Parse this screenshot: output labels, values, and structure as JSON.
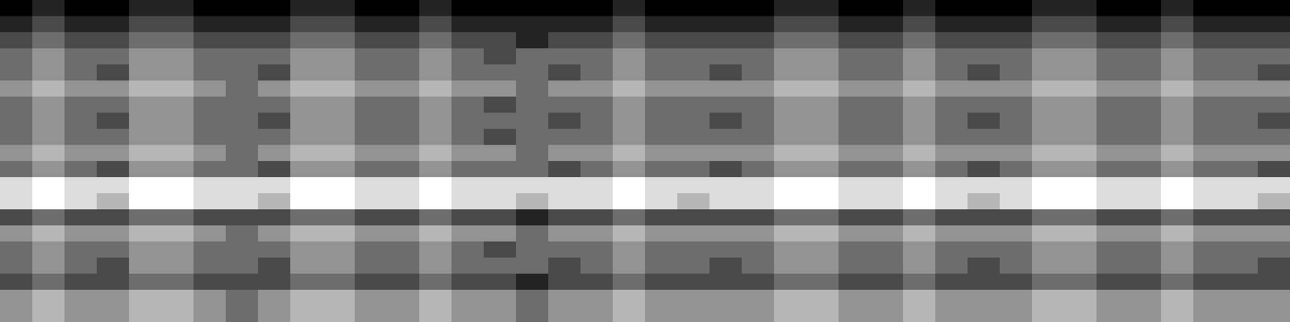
{
  "chart_data": {
    "type": "heatmap",
    "color": "gray",
    "tick_labels": false,
    "cells": [
      [
        0,
        1,
        0,
        0,
        1,
        1,
        0,
        0,
        0,
        1,
        1,
        0,
        0,
        1,
        0,
        0,
        0,
        0,
        0,
        1,
        0,
        0,
        0,
        0,
        1,
        1,
        0,
        0,
        1,
        0,
        0,
        0,
        1,
        1,
        0,
        0,
        1,
        0,
        0,
        0
      ],
      [
        1,
        2,
        1,
        1,
        2,
        2,
        1,
        1,
        1,
        2,
        2,
        1,
        1,
        2,
        1,
        1,
        1,
        1,
        1,
        2,
        1,
        1,
        1,
        1,
        2,
        2,
        1,
        1,
        2,
        1,
        1,
        1,
        2,
        2,
        1,
        1,
        2,
        1,
        1,
        1
      ],
      [
        2,
        3,
        2,
        2,
        3,
        3,
        2,
        2,
        2,
        3,
        3,
        2,
        2,
        3,
        2,
        2,
        1,
        2,
        2,
        3,
        2,
        2,
        2,
        2,
        3,
        3,
        2,
        2,
        3,
        2,
        2,
        2,
        3,
        3,
        2,
        2,
        3,
        2,
        2,
        2
      ],
      [
        3,
        4,
        3,
        3,
        4,
        4,
        3,
        3,
        3,
        4,
        4,
        3,
        3,
        4,
        3,
        2,
        3,
        3,
        3,
        4,
        3,
        3,
        3,
        3,
        4,
        4,
        3,
        3,
        4,
        3,
        3,
        3,
        4,
        4,
        3,
        3,
        4,
        3,
        3,
        3
      ],
      [
        3,
        4,
        3,
        2,
        4,
        4,
        3,
        3,
        2,
        4,
        4,
        3,
        3,
        4,
        3,
        3,
        3,
        2,
        3,
        4,
        3,
        3,
        2,
        3,
        4,
        4,
        3,
        3,
        4,
        3,
        2,
        3,
        4,
        4,
        3,
        3,
        4,
        3,
        3,
        2
      ],
      [
        4,
        5,
        4,
        4,
        5,
        5,
        4,
        3,
        4,
        5,
        5,
        4,
        4,
        5,
        4,
        4,
        3,
        4,
        4,
        5,
        4,
        4,
        4,
        4,
        5,
        5,
        4,
        4,
        5,
        4,
        4,
        4,
        5,
        5,
        4,
        4,
        5,
        4,
        4,
        4
      ],
      [
        3,
        4,
        3,
        3,
        4,
        4,
        3,
        3,
        3,
        4,
        4,
        3,
        3,
        4,
        3,
        2,
        3,
        3,
        3,
        4,
        3,
        3,
        3,
        3,
        4,
        4,
        3,
        3,
        4,
        3,
        3,
        3,
        4,
        4,
        3,
        3,
        4,
        3,
        3,
        3
      ],
      [
        3,
        4,
        3,
        2,
        4,
        4,
        3,
        3,
        2,
        4,
        4,
        3,
        3,
        4,
        3,
        3,
        3,
        2,
        3,
        4,
        3,
        3,
        2,
        3,
        4,
        4,
        3,
        3,
        4,
        3,
        2,
        3,
        4,
        4,
        3,
        3,
        4,
        3,
        3,
        2
      ],
      [
        3,
        4,
        3,
        3,
        4,
        4,
        3,
        3,
        3,
        4,
        4,
        3,
        3,
        4,
        3,
        2,
        3,
        3,
        3,
        4,
        3,
        3,
        3,
        3,
        4,
        4,
        3,
        3,
        4,
        3,
        3,
        3,
        4,
        4,
        3,
        3,
        4,
        3,
        3,
        3
      ],
      [
        4,
        5,
        4,
        4,
        5,
        5,
        4,
        3,
        4,
        5,
        5,
        4,
        4,
        5,
        4,
        4,
        3,
        4,
        4,
        5,
        4,
        4,
        4,
        4,
        5,
        5,
        4,
        4,
        5,
        4,
        4,
        4,
        5,
        5,
        4,
        4,
        5,
        4,
        4,
        4
      ],
      [
        3,
        4,
        3,
        2,
        4,
        4,
        3,
        3,
        2,
        4,
        4,
        3,
        3,
        4,
        3,
        3,
        3,
        2,
        3,
        4,
        3,
        3,
        2,
        3,
        4,
        4,
        3,
        3,
        4,
        3,
        2,
        3,
        4,
        4,
        3,
        3,
        4,
        3,
        3,
        2
      ],
      [
        6,
        7,
        6,
        6,
        7,
        7,
        6,
        6,
        6,
        7,
        7,
        6,
        6,
        7,
        6,
        6,
        6,
        6,
        6,
        7,
        6,
        6,
        6,
        6,
        7,
        7,
        6,
        6,
        7,
        6,
        6,
        6,
        7,
        7,
        6,
        6,
        7,
        6,
        6,
        6
      ],
      [
        6,
        7,
        6,
        5,
        7,
        7,
        6,
        6,
        5,
        7,
        7,
        6,
        6,
        7,
        6,
        6,
        5,
        6,
        6,
        7,
        6,
        5,
        6,
        6,
        7,
        7,
        6,
        6,
        7,
        6,
        5,
        6,
        7,
        7,
        6,
        6,
        7,
        6,
        6,
        5
      ],
      [
        2,
        3,
        2,
        2,
        3,
        3,
        2,
        2,
        2,
        3,
        3,
        2,
        2,
        3,
        2,
        2,
        1,
        2,
        2,
        3,
        2,
        2,
        2,
        2,
        3,
        3,
        2,
        2,
        3,
        2,
        2,
        2,
        3,
        3,
        2,
        2,
        3,
        2,
        2,
        2
      ],
      [
        4,
        5,
        4,
        4,
        5,
        5,
        4,
        3,
        4,
        5,
        5,
        4,
        4,
        5,
        4,
        4,
        3,
        4,
        4,
        5,
        4,
        4,
        4,
        4,
        5,
        5,
        4,
        4,
        5,
        4,
        4,
        4,
        5,
        5,
        4,
        4,
        5,
        4,
        4,
        4
      ],
      [
        3,
        4,
        3,
        3,
        4,
        4,
        3,
        3,
        3,
        4,
        4,
        3,
        3,
        4,
        3,
        2,
        3,
        3,
        3,
        4,
        3,
        3,
        3,
        3,
        4,
        4,
        3,
        3,
        4,
        3,
        3,
        3,
        4,
        4,
        3,
        3,
        4,
        3,
        3,
        3
      ],
      [
        3,
        4,
        3,
        2,
        4,
        4,
        3,
        3,
        2,
        4,
        4,
        3,
        3,
        4,
        3,
        3,
        3,
        2,
        3,
        4,
        3,
        3,
        2,
        3,
        4,
        4,
        3,
        3,
        4,
        3,
        2,
        3,
        4,
        4,
        3,
        3,
        4,
        3,
        3,
        2
      ],
      [
        2,
        3,
        2,
        2,
        3,
        3,
        2,
        2,
        2,
        3,
        3,
        2,
        2,
        3,
        2,
        2,
        1,
        2,
        2,
        3,
        2,
        2,
        2,
        2,
        3,
        3,
        2,
        2,
        3,
        2,
        2,
        2,
        3,
        3,
        2,
        2,
        3,
        2,
        2,
        2
      ],
      [
        4,
        5,
        4,
        4,
        5,
        5,
        4,
        3,
        4,
        5,
        5,
        4,
        4,
        5,
        4,
        4,
        3,
        4,
        4,
        5,
        4,
        4,
        4,
        4,
        5,
        5,
        4,
        4,
        5,
        4,
        4,
        4,
        5,
        5,
        4,
        4,
        5,
        4,
        4,
        4
      ],
      [
        4,
        5,
        4,
        4,
        5,
        5,
        4,
        3,
        4,
        5,
        5,
        4,
        4,
        5,
        4,
        4,
        3,
        4,
        4,
        5,
        4,
        4,
        4,
        4,
        5,
        5,
        4,
        4,
        5,
        4,
        4,
        4,
        5,
        5,
        4,
        4,
        5,
        4,
        4,
        4
      ]
    ]
  }
}
